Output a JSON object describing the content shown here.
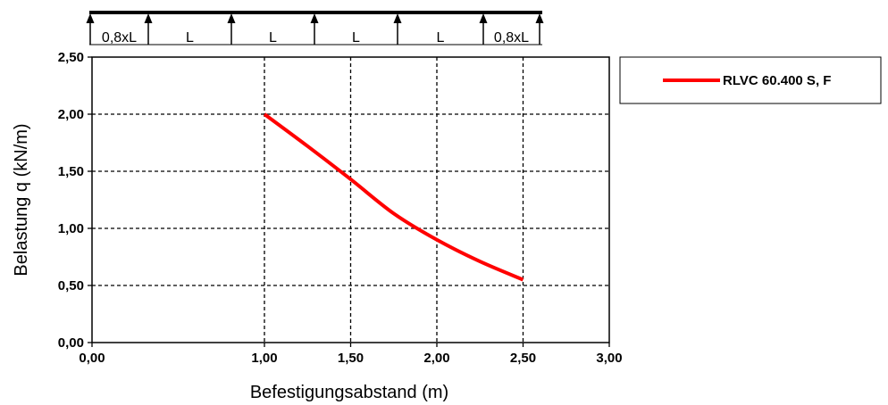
{
  "beam": {
    "segments": [
      "0,8xL",
      "L",
      "L",
      "L",
      "L",
      "0,8xL"
    ]
  },
  "chart_data": {
    "type": "line",
    "xlabel": "Befestigungsabstand (m)",
    "ylabel": "Belastung q (kN/m)",
    "xlim": [
      0,
      3
    ],
    "ylim": [
      0,
      2.5
    ],
    "x_ticks": [
      "0,00",
      "1,00",
      "1,50",
      "2,00",
      "2,50",
      "3,00"
    ],
    "y_ticks": [
      "0,00",
      "0,50",
      "1,00",
      "1,50",
      "2,00",
      "2,50"
    ],
    "grid": true,
    "legend_position": "right",
    "series": [
      {
        "name": "RLVC 60.400  S, F",
        "color": "#ff0000",
        "x": [
          1.0,
          1.25,
          1.5,
          1.75,
          2.0,
          2.25,
          2.5
        ],
        "y": [
          2.0,
          1.72,
          1.43,
          1.13,
          0.9,
          0.71,
          0.55
        ]
      }
    ]
  }
}
